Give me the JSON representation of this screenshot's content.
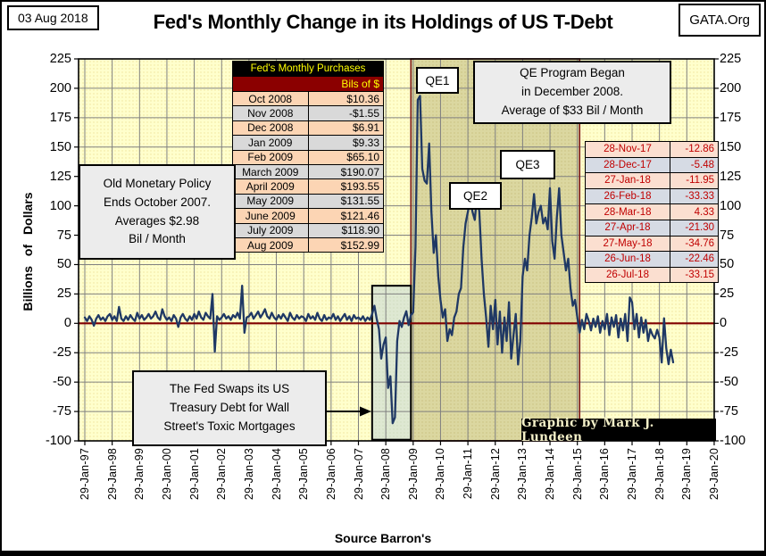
{
  "header": {
    "date": "03 Aug 2018",
    "org": "GATA.Org",
    "title": "Fed's Monthly Change in its Holdings of US T-Debt"
  },
  "footer": {
    "source": "Source Barron's"
  },
  "y_axis": {
    "title": "Billions of Dollars",
    "max": 225,
    "min": -100,
    "step": 25
  },
  "x_axis": {
    "labels": [
      "29-Jan-97",
      "29-Jan-98",
      "29-Jan-99",
      "29-Jan-00",
      "29-Jan-01",
      "29-Jan-02",
      "29-Jan-03",
      "29-Jan-04",
      "29-Jan-05",
      "29-Jan-06",
      "29-Jan-07",
      "29-Jan-08",
      "29-Jan-09",
      "29-Jan-10",
      "29-Jan-11",
      "29-Jan-12",
      "29-Jan-13",
      "29-Jan-14",
      "29-Jan-15",
      "29-Jan-16",
      "29-Jan-17",
      "29-Jan-18",
      "29-Jan-19",
      "29-Jan-20"
    ]
  },
  "annotations": {
    "old_policy": [
      "Old Monetary Policy",
      "Ends October 2007.",
      "Averages $2.98",
      "Bil / Month"
    ],
    "swaps": [
      "The Fed Swaps its US",
      "Treasury Debt for Wall",
      "Street's Toxic Mortgages"
    ],
    "qe_program": [
      "QE Program Began",
      "in December 2008.",
      "Average of $33 Bil / Month"
    ],
    "qe1": "QE1",
    "qe2": "QE2",
    "qe3": "QE3",
    "credit": "Graphic by Mark J. Lundeen"
  },
  "purchases_table": {
    "title": "Fed's Monthly Purchases",
    "header": "Bils of $",
    "rows": [
      [
        "Oct 2008",
        "$10.36"
      ],
      [
        "Nov 2008",
        "-$1.55"
      ],
      [
        "Dec 2008",
        "$6.91"
      ],
      [
        "Jan 2009",
        "$9.33"
      ],
      [
        "Feb 2009",
        "$65.10"
      ],
      [
        "March 2009",
        "$190.07"
      ],
      [
        "April 2009",
        "$193.55"
      ],
      [
        "May 2009",
        "$131.55"
      ],
      [
        "June 2009",
        "$121.46"
      ],
      [
        "July 2009",
        "$118.90"
      ],
      [
        "Aug 2009",
        "$152.99"
      ]
    ],
    "row_colors": [
      "#fcd5b4",
      "#d9d9d9"
    ]
  },
  "recent_table": {
    "rows": [
      [
        "28-Nov-17",
        "-12.86"
      ],
      [
        "28-Dec-17",
        "-5.48"
      ],
      [
        "27-Jan-18",
        "-11.95"
      ],
      [
        "26-Feb-18",
        "-33.33"
      ],
      [
        "28-Mar-18",
        "4.33"
      ],
      [
        "27-Apr-18",
        "-21.30"
      ],
      [
        "27-May-18",
        "-34.76"
      ],
      [
        "26-Jun-18",
        "-22.46"
      ],
      [
        "26-Jul-18",
        "-33.15"
      ]
    ],
    "row_colors": [
      "#fbdfd0",
      "#d6dbe4"
    ]
  },
  "chart_data": {
    "type": "line",
    "title": "Fed's Monthly Change in its Holdings of US T-Debt",
    "ylabel": "Billions of Dollars",
    "ylim": [
      -100,
      225
    ],
    "ytick_step": 25,
    "x_start": "1997-01",
    "frequency": "monthly",
    "grid": true,
    "colors": {
      "plot_bg": "#ffffcc",
      "plot_bg_dot": "#efe39b",
      "qe_fill": "#dbd7a0",
      "qe_dot": "#c9c07e",
      "qe_border": "#7f1a1a",
      "swap_fill": "#dee8d2",
      "swap_dot": "#cfdcbd",
      "swap_border": "#000000",
      "grid": "#808080",
      "zero_line": "#800000",
      "series": "#1f3864",
      "frame": "#000000"
    },
    "regions": [
      {
        "label": "QE era",
        "start": "2008-12",
        "end": "2015-02",
        "value_top": 225,
        "value_bottom": -100
      },
      {
        "label": "Fed swap window",
        "start": "2007-07",
        "end": "2008-12",
        "value_top": 32,
        "value_bottom": -99
      }
    ],
    "series": [
      {
        "name": "Fed monthly change in US T-debt holdings (Bils of $)",
        "values": [
          5,
          2,
          6,
          3,
          -2,
          4,
          7,
          3,
          5,
          2,
          6,
          8,
          3,
          6,
          2,
          14,
          4,
          2,
          6,
          3,
          7,
          4,
          2,
          9,
          4,
          7,
          3,
          5,
          8,
          4,
          6,
          10,
          5,
          3,
          12,
          6,
          3,
          5,
          2,
          7,
          4,
          -3,
          5,
          8,
          4,
          2,
          6,
          3,
          8,
          4,
          10,
          5,
          3,
          9,
          6,
          4,
          25,
          -24,
          6,
          3,
          5,
          8,
          4,
          6,
          3,
          7,
          5,
          9,
          4,
          32,
          -8,
          5,
          6,
          9,
          4,
          7,
          10,
          5,
          8,
          12,
          6,
          4,
          9,
          5,
          3,
          7,
          4,
          8,
          5,
          2,
          9,
          5,
          3,
          7,
          4,
          6,
          5,
          2,
          8,
          4,
          6,
          3,
          9,
          4,
          2,
          7,
          3,
          5,
          4,
          8,
          3,
          6,
          2,
          5,
          8,
          3,
          6,
          2,
          7,
          4,
          5,
          3,
          6,
          2,
          5,
          3,
          8,
          15,
          4,
          -5,
          -30,
          -18,
          -12,
          -55,
          -45,
          -85,
          -80,
          -15,
          2,
          -3,
          5,
          10.36,
          -1.55,
          6.91,
          9.33,
          65.1,
          190.07,
          193.55,
          131.55,
          121.46,
          118.9,
          152.99,
          95,
          60,
          75,
          40,
          20,
          5,
          12,
          -15,
          -5,
          -10,
          5,
          10,
          25,
          30,
          65,
          85,
          95,
          105,
          95,
          88,
          108,
          95,
          55,
          25,
          5,
          -20,
          15,
          -5,
          20,
          -18,
          10,
          -25,
          5,
          -15,
          18,
          -30,
          -10,
          8,
          -35,
          -15,
          40,
          55,
          45,
          75,
          90,
          110,
          85,
          95,
          100,
          85,
          90,
          80,
          115,
          70,
          55,
          90,
          115,
          75,
          60,
          45,
          55,
          30,
          15,
          20,
          5,
          -8,
          3,
          -5,
          8,
          2,
          -6,
          4,
          -3,
          6,
          -8,
          2,
          -5,
          8,
          -10,
          5,
          -3,
          7,
          -12,
          4,
          -6,
          8,
          -15,
          22,
          18,
          -5,
          8,
          -12,
          5,
          -8,
          3,
          -15,
          -5,
          -10,
          -12.86,
          -5.48,
          -11.95,
          -33.33,
          4.33,
          -21.3,
          -34.76,
          -22.46,
          -33.15
        ]
      }
    ]
  }
}
